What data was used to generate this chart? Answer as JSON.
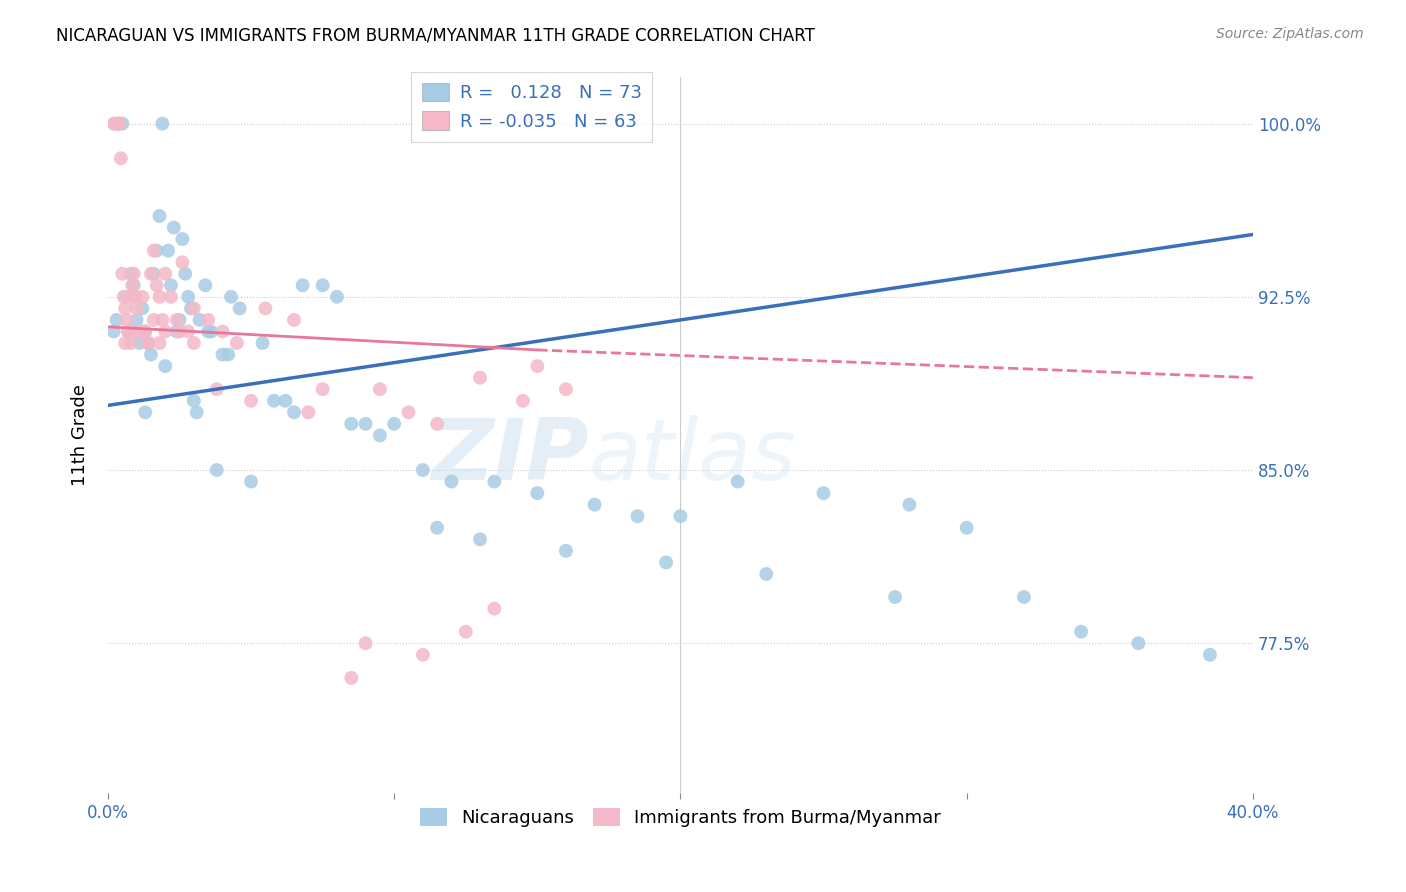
{
  "title": "NICARAGUAN VS IMMIGRANTS FROM BURMA/MYANMAR 11TH GRADE CORRELATION CHART",
  "source": "Source: ZipAtlas.com",
  "ylabel": "11th Grade",
  "yticks": [
    100.0,
    92.5,
    85.0,
    77.5
  ],
  "ytick_labels": [
    "100.0%",
    "92.5%",
    "85.0%",
    "77.5%"
  ],
  "xmin": 0.0,
  "xmax": 40.0,
  "ymin": 71.0,
  "ymax": 102.0,
  "blue_R": 0.128,
  "blue_N": 73,
  "pink_R": -0.035,
  "pink_N": 63,
  "blue_color": "#a8cce4",
  "pink_color": "#f4b8c8",
  "blue_line_color": "#3a6fba",
  "pink_line_color": "#e87898",
  "legend_label_blue": "Nicaraguans",
  "legend_label_pink": "Immigrants from Burma/Myanmar",
  "watermark_left": "ZIP",
  "watermark_right": "atlas",
  "blue_line_x0": 0.0,
  "blue_line_y0": 87.8,
  "blue_line_x1": 40.0,
  "blue_line_y1": 95.2,
  "pink_line_solid_x0": 0.0,
  "pink_line_solid_y0": 91.2,
  "pink_line_solid_x1": 15.0,
  "pink_line_solid_y1": 90.2,
  "pink_line_dash_x0": 15.0,
  "pink_line_dash_y0": 90.2,
  "pink_line_dash_x1": 40.0,
  "pink_line_dash_y1": 89.0,
  "blue_scatter_x": [
    0.2,
    0.3,
    0.4,
    0.5,
    0.6,
    0.7,
    0.8,
    0.9,
    1.0,
    1.1,
    1.2,
    1.3,
    1.4,
    1.5,
    1.6,
    1.7,
    1.8,
    1.9,
    2.0,
    2.1,
    2.2,
    2.3,
    2.4,
    2.5,
    2.6,
    2.7,
    2.8,
    2.9,
    3.0,
    3.1,
    3.2,
    3.4,
    3.6,
    3.8,
    4.0,
    4.3,
    4.6,
    5.0,
    5.4,
    5.8,
    6.2,
    6.8,
    7.5,
    8.0,
    9.0,
    10.0,
    11.0,
    12.0,
    13.5,
    15.0,
    17.0,
    18.5,
    20.0,
    22.0,
    25.0,
    28.0,
    30.0,
    32.0,
    34.0,
    36.0,
    38.5,
    1.3,
    3.5,
    4.2,
    6.5,
    8.5,
    9.5,
    11.5,
    13.0,
    16.0,
    19.5,
    23.0,
    27.5
  ],
  "blue_scatter_y": [
    91.0,
    91.5,
    100.0,
    100.0,
    92.5,
    91.0,
    93.5,
    93.0,
    91.5,
    90.5,
    92.0,
    91.0,
    90.5,
    90.0,
    93.5,
    94.5,
    96.0,
    100.0,
    89.5,
    94.5,
    93.0,
    95.5,
    91.0,
    91.5,
    95.0,
    93.5,
    92.5,
    92.0,
    88.0,
    87.5,
    91.5,
    93.0,
    91.0,
    85.0,
    90.0,
    92.5,
    92.0,
    84.5,
    90.5,
    88.0,
    88.0,
    93.0,
    93.0,
    92.5,
    87.0,
    87.0,
    85.0,
    84.5,
    84.5,
    84.0,
    83.5,
    83.0,
    83.0,
    84.5,
    84.0,
    83.5,
    82.5,
    79.5,
    78.0,
    77.5,
    77.0,
    87.5,
    91.0,
    90.0,
    87.5,
    87.0,
    86.5,
    82.5,
    82.0,
    81.5,
    81.0,
    80.5,
    79.5
  ],
  "pink_scatter_x": [
    0.2,
    0.25,
    0.3,
    0.35,
    0.4,
    0.45,
    0.5,
    0.55,
    0.6,
    0.65,
    0.7,
    0.75,
    0.8,
    0.85,
    0.9,
    0.95,
    1.0,
    1.1,
    1.2,
    1.3,
    1.4,
    1.5,
    1.6,
    1.7,
    1.8,
    1.9,
    2.0,
    2.2,
    2.4,
    2.6,
    2.8,
    3.0,
    3.5,
    4.0,
    4.5,
    5.5,
    6.5,
    7.5,
    8.5,
    9.5,
    10.5,
    11.5,
    12.5,
    13.5,
    15.0,
    0.6,
    0.8,
    1.0,
    1.2,
    1.4,
    1.6,
    1.8,
    2.0,
    2.5,
    3.0,
    3.8,
    5.0,
    7.0,
    9.0,
    11.0,
    13.0,
    14.5,
    16.0
  ],
  "pink_scatter_y": [
    100.0,
    100.0,
    100.0,
    100.0,
    100.0,
    98.5,
    93.5,
    92.5,
    92.0,
    91.5,
    91.0,
    91.0,
    90.5,
    93.0,
    93.5,
    92.5,
    92.0,
    91.0,
    92.5,
    91.0,
    90.5,
    93.5,
    94.5,
    93.0,
    92.5,
    91.5,
    91.0,
    92.5,
    91.5,
    94.0,
    91.0,
    90.5,
    91.5,
    91.0,
    90.5,
    92.0,
    91.5,
    88.5,
    76.0,
    88.5,
    87.5,
    87.0,
    78.0,
    79.0,
    89.5,
    90.5,
    92.5,
    91.0,
    91.0,
    90.5,
    91.5,
    90.5,
    93.5,
    91.0,
    92.0,
    88.5,
    88.0,
    87.5,
    77.5,
    77.0,
    89.0,
    88.0,
    88.5
  ]
}
